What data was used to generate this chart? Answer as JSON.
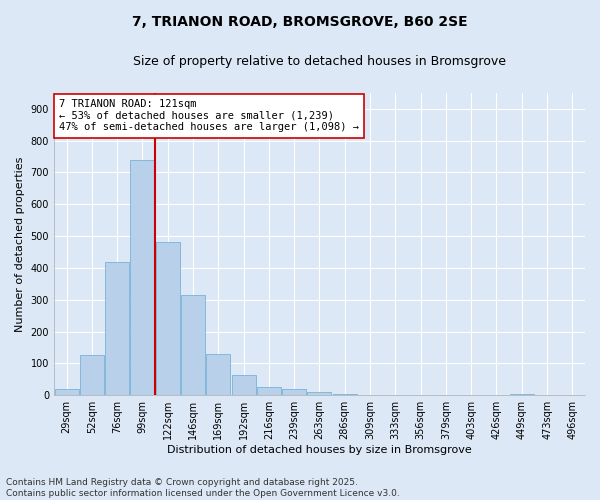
{
  "title1": "7, TRIANON ROAD, BROMSGROVE, B60 2SE",
  "title2": "Size of property relative to detached houses in Bromsgrove",
  "xlabel": "Distribution of detached houses by size in Bromsgrove",
  "ylabel": "Number of detached properties",
  "bar_values": [
    20,
    125,
    420,
    740,
    480,
    315,
    130,
    65,
    25,
    20,
    10,
    5,
    0,
    0,
    0,
    0,
    0,
    0,
    5,
    0,
    0
  ],
  "bar_labels": [
    "29sqm",
    "52sqm",
    "76sqm",
    "99sqm",
    "122sqm",
    "146sqm",
    "169sqm",
    "192sqm",
    "216sqm",
    "239sqm",
    "263sqm",
    "286sqm",
    "309sqm",
    "333sqm",
    "356sqm",
    "379sqm",
    "403sqm",
    "426sqm",
    "449sqm",
    "473sqm",
    "496sqm"
  ],
  "bar_color": "#b8d0ea",
  "bar_edge_color": "#6aaad4",
  "fig_bg_color": "#dce8f5",
  "ax_bg_color": "#dce8f5",
  "grid_color": "#ffffff",
  "vline_color": "#cc0000",
  "annotation_text": "7 TRIANON ROAD: 121sqm\n← 53% of detached houses are smaller (1,239)\n47% of semi-detached houses are larger (1,098) →",
  "annotation_box_facecolor": "#ffffff",
  "annotation_box_edgecolor": "#cc0000",
  "ylim": [
    0,
    950
  ],
  "yticks": [
    0,
    100,
    200,
    300,
    400,
    500,
    600,
    700,
    800,
    900
  ],
  "footnote": "Contains HM Land Registry data © Crown copyright and database right 2025.\nContains public sector information licensed under the Open Government Licence v3.0.",
  "title1_fontsize": 10,
  "title2_fontsize": 9,
  "axis_label_fontsize": 8,
  "tick_fontsize": 7,
  "annotation_fontsize": 7.5,
  "footnote_fontsize": 6.5
}
